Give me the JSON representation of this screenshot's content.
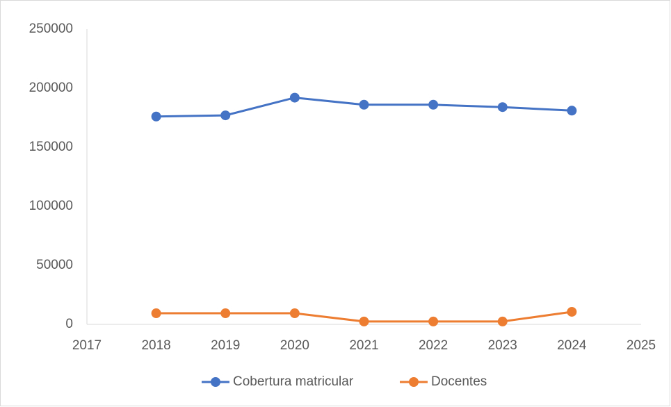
{
  "chart_data": {
    "type": "line",
    "x": [
      2018,
      2019,
      2020,
      2021,
      2022,
      2023,
      2024
    ],
    "series": [
      {
        "name": "Cobertura matricular",
        "color": "#4472c4",
        "values": [
          176000,
          177000,
          192000,
          186000,
          186000,
          184000,
          181000
        ]
      },
      {
        "name": "Docentes",
        "color": "#ed7d31",
        "values": [
          9400,
          9400,
          9400,
          2400,
          2400,
          2400,
          10600
        ]
      }
    ],
    "xlim": [
      2017,
      2025
    ],
    "xticks": [
      2017,
      2018,
      2019,
      2020,
      2021,
      2022,
      2023,
      2024,
      2025
    ],
    "ylim": [
      0,
      250000
    ],
    "yticks": [
      0,
      50000,
      100000,
      150000,
      200000,
      250000
    ],
    "grid": false,
    "legend": "bottom"
  }
}
